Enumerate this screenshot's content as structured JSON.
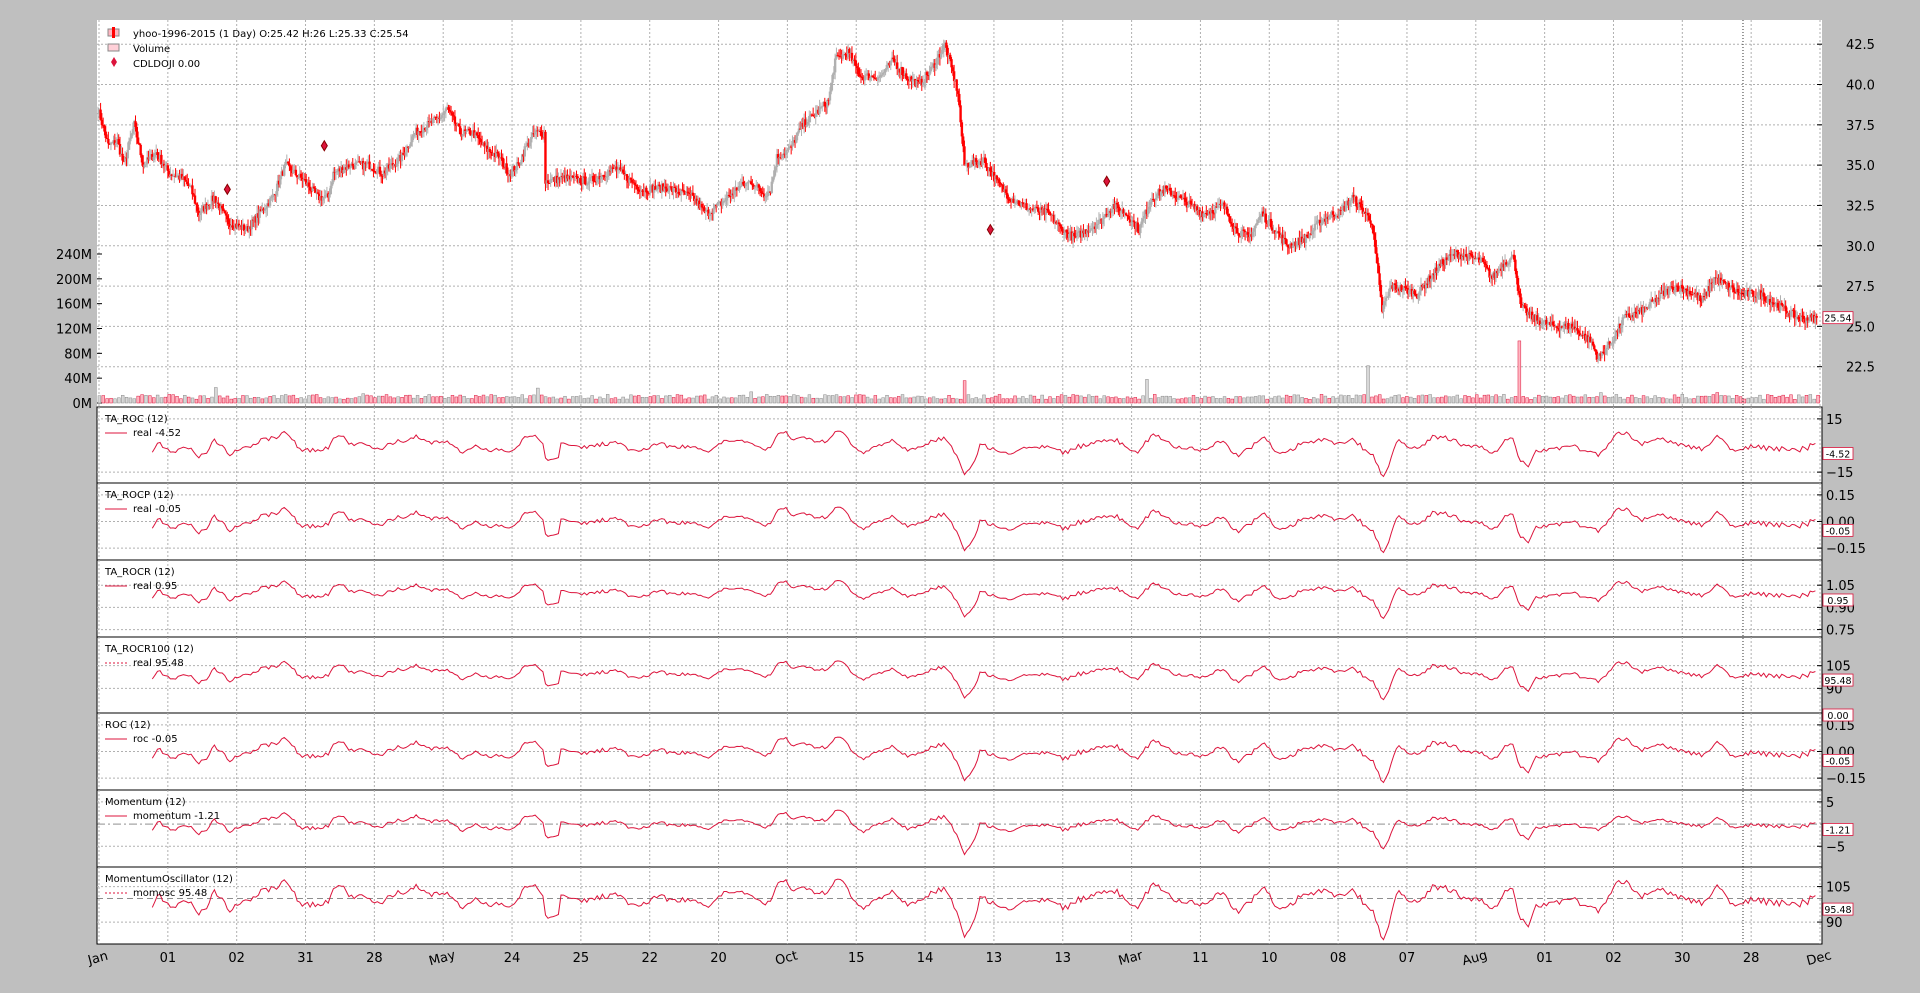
{
  "colors": {
    "background": "#bfbfbf",
    "panel": "#ffffff",
    "grid": "#b0b0b0",
    "down_bar": "#ff0000",
    "up_bar": "#b0b0b0",
    "indicator_line": "#dc143c",
    "doji_marker": "#dc143c"
  },
  "chart_data": [
    {
      "type": "candlestick",
      "panel": "price",
      "grid": true,
      "legend_placement": "top-left",
      "legend": [
        {
          "icon": "candle-icon",
          "label": "yhoo-1996-2015 (1 Day) O:25.42 H:26 L:25.33 C:25.54"
        },
        {
          "icon": "volume-bar-icon",
          "label": "Volume"
        },
        {
          "icon": "diamond-icon",
          "label": "CDLDOJI 0.00"
        }
      ],
      "y_ticks": [
        "22.5",
        "25.0",
        "27.5",
        "30.0",
        "32.5",
        "35.0",
        "37.5",
        "40.0",
        "42.5"
      ],
      "ylim": [
        20.0,
        44.0
      ],
      "last_value_label": "25.54",
      "close_path": [
        [
          0,
          38.5
        ],
        [
          8,
          36.2
        ],
        [
          15,
          36.5
        ],
        [
          20,
          35.0
        ],
        [
          28,
          37.5
        ],
        [
          35,
          35.0
        ],
        [
          45,
          35.8
        ],
        [
          55,
          34.5
        ],
        [
          65,
          34.2
        ],
        [
          72,
          33.5
        ],
        [
          78,
          32.0
        ],
        [
          90,
          33.0
        ],
        [
          100,
          31.5
        ],
        [
          115,
          31.0
        ],
        [
          125,
          32.0
        ],
        [
          135,
          33.0
        ],
        [
          145,
          35.0
        ],
        [
          152,
          34.5
        ],
        [
          160,
          34.0
        ],
        [
          170,
          33.0
        ],
        [
          178,
          33.0
        ],
        [
          182,
          34.5
        ],
        [
          195,
          35.0
        ],
        [
          210,
          35.0
        ],
        [
          220,
          34.5
        ],
        [
          235,
          35.5
        ],
        [
          245,
          37.0
        ],
        [
          255,
          37.5
        ],
        [
          265,
          38.0
        ],
        [
          270,
          38.5
        ],
        [
          280,
          37.0
        ],
        [
          290,
          37.0
        ],
        [
          300,
          36.0
        ],
        [
          310,
          35.5
        ],
        [
          318,
          34.5
        ],
        [
          325,
          35.0
        ],
        [
          330,
          36.0
        ],
        [
          338,
          37.0
        ],
        [
          345,
          37.0
        ],
        [
          346,
          34.0
        ],
        [
          360,
          34.2
        ],
        [
          380,
          34.0
        ],
        [
          400,
          34.8
        ],
        [
          420,
          33.5
        ],
        [
          440,
          33.6
        ],
        [
          460,
          33.0
        ],
        [
          470,
          32.0
        ],
        [
          480,
          32.5
        ],
        [
          495,
          33.6
        ],
        [
          505,
          34.0
        ],
        [
          515,
          33.2
        ],
        [
          520,
          33.5
        ],
        [
          525,
          35.5
        ],
        [
          535,
          36.0
        ],
        [
          545,
          37.5
        ],
        [
          555,
          38.2
        ],
        [
          565,
          39.0
        ],
        [
          570,
          41.5
        ],
        [
          580,
          42.0
        ],
        [
          590,
          40.5
        ],
        [
          605,
          40.5
        ],
        [
          615,
          41.5
        ],
        [
          625,
          40.5
        ],
        [
          635,
          40.0
        ],
        [
          645,
          41.0
        ],
        [
          655,
          42.5
        ],
        [
          665,
          39.5
        ],
        [
          670,
          35.0
        ],
        [
          685,
          35.3
        ],
        [
          695,
          34.0
        ],
        [
          705,
          33.0
        ],
        [
          720,
          32.3
        ],
        [
          735,
          32.0
        ],
        [
          745,
          31.0
        ],
        [
          755,
          30.5
        ],
        [
          765,
          31.0
        ],
        [
          775,
          31.5
        ],
        [
          785,
          32.5
        ],
        [
          795,
          32.0
        ],
        [
          805,
          31.0
        ],
        [
          815,
          33.0
        ],
        [
          825,
          33.5
        ],
        [
          835,
          33.0
        ],
        [
          845,
          32.5
        ],
        [
          855,
          32.0
        ],
        [
          870,
          32.5
        ],
        [
          880,
          31.0
        ],
        [
          890,
          30.5
        ],
        [
          900,
          32.0
        ],
        [
          910,
          31.0
        ],
        [
          920,
          30.0
        ],
        [
          935,
          30.5
        ],
        [
          945,
          31.5
        ],
        [
          955,
          32.0
        ],
        [
          960,
          32.0
        ],
        [
          970,
          33.0
        ],
        [
          980,
          32.0
        ],
        [
          985,
          31.5
        ],
        [
          993,
          26.0
        ],
        [
          1000,
          27.5
        ],
        [
          1010,
          27.3
        ],
        [
          1020,
          27.0
        ],
        [
          1030,
          28.0
        ],
        [
          1040,
          29.0
        ],
        [
          1050,
          29.5
        ],
        [
          1060,
          29.3
        ],
        [
          1070,
          29.0
        ],
        [
          1078,
          28.0
        ],
        [
          1088,
          29.0
        ],
        [
          1095,
          29.3
        ],
        [
          1100,
          26.2
        ],
        [
          1110,
          25.5
        ],
        [
          1125,
          25.0
        ],
        [
          1140,
          25.0
        ],
        [
          1155,
          24.0
        ],
        [
          1160,
          23.0
        ],
        [
          1170,
          24.0
        ],
        [
          1180,
          25.5
        ],
        [
          1195,
          26.0
        ],
        [
          1210,
          27.0
        ],
        [
          1220,
          27.5
        ],
        [
          1235,
          27.0
        ],
        [
          1240,
          26.5
        ],
        [
          1250,
          28.0
        ],
        [
          1260,
          27.5
        ],
        [
          1270,
          27.0
        ],
        [
          1285,
          27.0
        ],
        [
          1295,
          26.5
        ],
        [
          1305,
          26.0
        ],
        [
          1315,
          25.5
        ],
        [
          1330,
          25.5
        ]
      ],
      "doji_markers": [
        [
          100,
          33.5
        ],
        [
          175,
          36.2
        ],
        [
          690,
          31.0
        ],
        [
          780,
          34.0
        ]
      ]
    },
    {
      "type": "bar",
      "panel": "volume",
      "y_ticks": [
        "0M",
        "40M",
        "80M",
        "120M",
        "160M",
        "200M",
        "240M"
      ],
      "ylim": [
        0,
        240
      ],
      "typical_volume": 10,
      "spikes": [
        [
          90,
          25
        ],
        [
          205,
          25
        ],
        [
          340,
          40
        ],
        [
          505,
          30
        ],
        [
          565,
          20
        ],
        [
          668,
          60
        ],
        [
          810,
          38
        ],
        [
          925,
          22
        ],
        [
          980,
          100
        ],
        [
          1098,
          100
        ],
        [
          1150,
          22
        ],
        [
          1160,
          28
        ],
        [
          1250,
          28
        ]
      ]
    },
    {
      "type": "line",
      "panel": "TA_ROC (12)",
      "legend": "real -4.52",
      "legend_line_style": "solid",
      "y_ticks": [
        "15",
        "−15"
      ],
      "tick_values": [
        15,
        -15
      ],
      "ylim": [
        -20,
        20
      ],
      "last_value_label": "-4.52",
      "baseline": null
    },
    {
      "type": "line",
      "panel": "TA_ROCP (12)",
      "legend": "real -0.05",
      "legend_line_style": "solid",
      "y_ticks": [
        "0.15",
        "0.00",
        "−0.15"
      ],
      "tick_values": [
        0.15,
        0.0,
        -0.15
      ],
      "ylim": [
        -0.2,
        0.2
      ],
      "last_value_label": "-0.05",
      "baseline": null
    },
    {
      "type": "line",
      "panel": "TA_ROCR (12)",
      "legend": "real 0.95",
      "legend_line_style": "solid",
      "y_ticks": [
        "1.05",
        "0.90",
        "0.75"
      ],
      "tick_values": [
        1.05,
        0.9,
        0.75
      ],
      "ylim": [
        0.72,
        1.2
      ],
      "last_value_label": "0.95",
      "baseline": null
    },
    {
      "type": "line",
      "panel": "TA_ROCR100 (12)",
      "legend": "real 95.48",
      "legend_line_style": "dotted",
      "y_ticks": [
        "105",
        "90"
      ],
      "tick_values": [
        105,
        90
      ],
      "ylim": [
        75,
        122
      ],
      "last_value_label": "95.48",
      "baseline": null
    },
    {
      "type": "line",
      "panel": "ROC (12)",
      "legend": "roc -0.05",
      "legend_line_style": "solid",
      "y_ticks": [
        "0.15",
        "0.00",
        "−0.15"
      ],
      "tick_values": [
        0.15,
        0.0,
        -0.15
      ],
      "ylim": [
        -0.2,
        0.2
      ],
      "last_value_label": "-0.05",
      "top_value_label": "0.00",
      "baseline": null
    },
    {
      "type": "line",
      "panel": "Momentum (12)",
      "legend": "momentum -1.21",
      "legend_line_style": "solid",
      "y_ticks": [
        "5",
        "−5"
      ],
      "tick_values": [
        5,
        -5
      ],
      "ylim": [
        -9,
        7
      ],
      "last_value_label": "-1.21",
      "baseline": 0
    },
    {
      "type": "line",
      "panel": "MomentumOscillator (12)",
      "legend": "momosc 95.48",
      "legend_line_style": "dotted",
      "y_ticks": [
        "105",
        "90"
      ],
      "tick_values": [
        105,
        90
      ],
      "ylim": [
        82,
        112
      ],
      "last_value_label": "95.48",
      "baseline": 100
    }
  ],
  "x_axis": {
    "labels": [
      "Jan",
      "01",
      "02",
      "31",
      "28",
      "May",
      "24",
      "25",
      "22",
      "20",
      "Oct",
      "15",
      "14",
      "13",
      "13",
      "Mar",
      "11",
      "10",
      "08",
      "07",
      "Aug",
      "01",
      "02",
      "30",
      "28",
      "Dec"
    ]
  }
}
